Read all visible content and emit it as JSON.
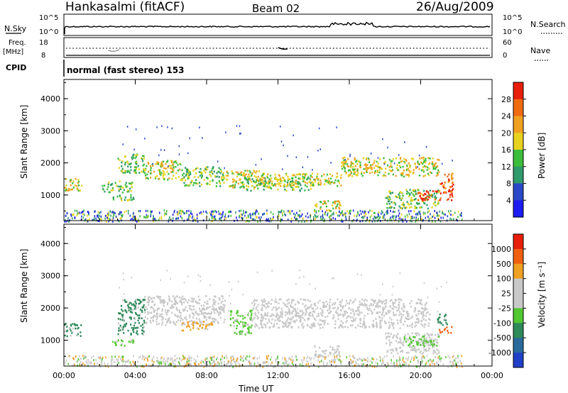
{
  "header": {
    "station": "Hankasalmi (fitACF)",
    "beam": "Beam 02",
    "date": "26/Aug/2009"
  },
  "top_panels": {
    "nsky_label": "N.Sky",
    "nsky_ticks": [
      "10^5",
      "10^0"
    ],
    "nsearch_label": "N.Search",
    "nsearch_ticks": [
      "10^5",
      "10^0"
    ],
    "freq_label_1": "Freq.",
    "freq_label_2": "[MHz]",
    "freq_ticks": [
      "18",
      "8"
    ],
    "nave_label": "Nave",
    "nave_ticks": [
      "60",
      "0"
    ],
    "cpid_label": "CPID",
    "cpid_value": "normal (fast stereo) 153"
  },
  "chart_data": [
    {
      "type": "heatmap",
      "title": "",
      "xlabel": "",
      "ylabel": "Slant Range [km]",
      "x_ticks": [
        "00:00",
        "04:00",
        "08:00",
        "12:00",
        "16:00",
        "20:00",
        "00:00"
      ],
      "y_ticks": [
        "1000",
        "2000",
        "3000",
        "4000"
      ],
      "xlim": [
        0,
        24
      ],
      "ylim": [
        200,
        4600
      ],
      "colorbar": {
        "label": "Power [dB]",
        "ticks": [
          "4",
          "8",
          "12",
          "16",
          "20",
          "24",
          "28"
        ],
        "colors": [
          "#1c1cf0",
          "#2848c8",
          "#2f9a6a",
          "#3cbd3c",
          "#e8d220",
          "#f0a020",
          "#f06a10",
          "#e81e0a"
        ]
      },
      "echo_regions_hours_km": [
        {
          "t0": 0.0,
          "t1": 1.0,
          "r0": 1150,
          "r1": 1550,
          "level": 4
        },
        {
          "t0": 2.0,
          "t1": 3.8,
          "r0": 1100,
          "r1": 1450,
          "level": 3
        },
        {
          "t0": 2.6,
          "t1": 3.9,
          "r0": 850,
          "r1": 1050,
          "level": 3
        },
        {
          "t0": 3.0,
          "t1": 4.5,
          "r0": 1700,
          "r1": 2300,
          "level": 3
        },
        {
          "t0": 4.5,
          "t1": 6.5,
          "r0": 1500,
          "r1": 2100,
          "level": 4
        },
        {
          "t0": 6.5,
          "t1": 9.0,
          "r0": 1300,
          "r1": 1900,
          "level": 3
        },
        {
          "t0": 9.0,
          "t1": 11.0,
          "r0": 1250,
          "r1": 1800,
          "level": 4
        },
        {
          "t0": 10.0,
          "t1": 14.0,
          "r0": 1150,
          "r1": 1550,
          "level": 3
        },
        {
          "t0": 11.0,
          "t1": 15.5,
          "r0": 1300,
          "r1": 1700,
          "level": 4
        },
        {
          "t0": 14.0,
          "t1": 15.5,
          "r0": 500,
          "r1": 850,
          "level": 4
        },
        {
          "t0": 15.5,
          "t1": 21.0,
          "r0": 1600,
          "r1": 2200,
          "level": 4
        },
        {
          "t0": 18.0,
          "t1": 21.0,
          "r0": 600,
          "r1": 1200,
          "level": 3
        },
        {
          "t0": 19.8,
          "t1": 21.8,
          "r0": 850,
          "r1": 1150,
          "level": 7
        },
        {
          "t0": 21.0,
          "t1": 21.8,
          "r0": 1100,
          "r1": 1700,
          "level": 6
        }
      ]
    },
    {
      "type": "heatmap",
      "title": "",
      "xlabel": "Time UT",
      "ylabel": "Slant Range [km]",
      "x_ticks": [
        "00:00",
        "04:00",
        "08:00",
        "12:00",
        "16:00",
        "20:00",
        "00:00"
      ],
      "y_ticks": [
        "1000",
        "2000",
        "3000",
        "4000"
      ],
      "xlim": [
        0,
        24
      ],
      "ylim": [
        200,
        4600
      ],
      "colorbar": {
        "label": "Velocity [m s⁻¹]",
        "ticks": [
          "1000",
          "500",
          "100",
          "25",
          "-25",
          "-100",
          "-500",
          "-1000"
        ],
        "colors": [
          "#2040c8",
          "#2a6a9a",
          "#2f8a5a",
          "#52c832",
          "#c8c8c8",
          "#c8c8c8",
          "#f0a020",
          "#f06010",
          "#e81e0a"
        ]
      },
      "echo_regions_hours_km": [
        {
          "t0": 0.0,
          "t1": 1.0,
          "r0": 1150,
          "r1": 1550,
          "color": "#2f8a5a"
        },
        {
          "t0": 2.6,
          "t1": 3.9,
          "r0": 850,
          "r1": 1050,
          "color": "#52c832"
        },
        {
          "t0": 3.0,
          "t1": 4.5,
          "r0": 1200,
          "r1": 2300,
          "color": "#2f8a5a"
        },
        {
          "t0": 4.5,
          "t1": 9.0,
          "r0": 1500,
          "r1": 2400,
          "color": "#c8c8c8"
        },
        {
          "t0": 6.5,
          "t1": 8.3,
          "r0": 1300,
          "r1": 1600,
          "color": "#f0a020"
        },
        {
          "t0": 9.3,
          "t1": 10.5,
          "r0": 1200,
          "r1": 1950,
          "color": "#52c832"
        },
        {
          "t0": 10.5,
          "t1": 20.5,
          "r0": 1400,
          "r1": 2300,
          "color": "#c8c8c8"
        },
        {
          "t0": 14.0,
          "t1": 15.5,
          "r0": 500,
          "r1": 850,
          "color": "#c8c8c8"
        },
        {
          "t0": 18.0,
          "t1": 21.0,
          "r0": 600,
          "r1": 1250,
          "color": "#c8c8c8"
        },
        {
          "t0": 19.0,
          "t1": 21.0,
          "r0": 850,
          "r1": 1150,
          "color": "#52c832"
        },
        {
          "t0": 21.0,
          "t1": 21.7,
          "r0": 1250,
          "r1": 1450,
          "color": "#f06010"
        },
        {
          "t0": 20.8,
          "t1": 21.5,
          "r0": 1500,
          "r1": 1850,
          "color": "#2f8a5a"
        }
      ]
    }
  ]
}
